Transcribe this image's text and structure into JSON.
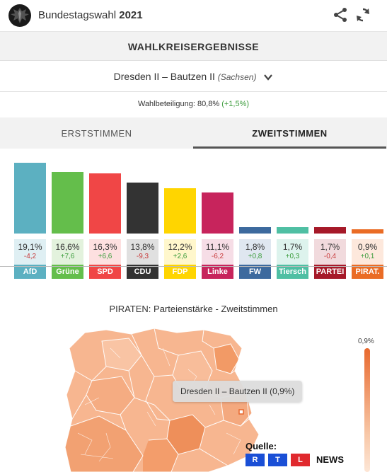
{
  "header": {
    "brand": "Bundestagswahl",
    "year": "2021",
    "icons": [
      "eagle-logo",
      "share-icon",
      "refresh-icon"
    ]
  },
  "section": {
    "title": "WAHLKREISERGEBNISSE"
  },
  "constituency": {
    "name": "Dresden II – Bautzen II",
    "state": "(Sachsen)"
  },
  "turnout": {
    "label": "Wahlbeteiligung: 80,8%",
    "delta": "(+1,5%)"
  },
  "tabs": [
    {
      "label": "ERSTSTIMMEN",
      "active": false
    },
    {
      "label": "ZWEITSTIMMEN",
      "active": true
    }
  ],
  "chart_data": {
    "type": "bar",
    "title": "",
    "categories": [
      "AfD",
      "Grüne",
      "SPD",
      "CDU",
      "FDP",
      "Linke",
      "FW",
      "Tiersch",
      "PARTEI",
      "PIRAT."
    ],
    "values": [
      19.1,
      16.6,
      16.3,
      13.8,
      12.2,
      11.1,
      1.8,
      1.7,
      1.7,
      0.9
    ],
    "value_labels": [
      "19,1%",
      "16,6%",
      "16,3%",
      "13,8%",
      "12,2%",
      "11,1%",
      "1,8%",
      "1,7%",
      "1,7%",
      "0,9%"
    ],
    "changes": [
      "-4,2",
      "+7,6",
      "+6,6",
      "-9,3",
      "+2,6",
      "-6,2",
      "+0,8",
      "+0,3",
      "-0,4",
      "+0,1"
    ],
    "colors": [
      "#5cb0c1",
      "#64be4b",
      "#f04646",
      "#333333",
      "#ffd500",
      "#c7245c",
      "#3d6a9e",
      "#4fbfa3",
      "#a61929",
      "#ea6c25"
    ],
    "cell_backgrounds": [
      "#dfeff3",
      "#e3f2dd",
      "#fde0e0",
      "#e0e0e0",
      "#fff7cc",
      "#f6dde6",
      "#dfe7f0",
      "#ddf3ed",
      "#f1dadd",
      "#fde8dc"
    ],
    "label_colors": [
      "#5cb0c1",
      "#64be4b",
      "#f04646",
      "#333333",
      "#ffd500",
      "#c7245c",
      "#3d6a9e",
      "#4fbfa3",
      "#a61929",
      "#ea6c25"
    ],
    "ylim": [
      0,
      19.1
    ]
  },
  "map": {
    "title": "PIRATEN: Parteienstärke - Zweitstimmen",
    "scale_max": "0,9%",
    "tooltip": "Dresden II – Bautzen II (0,9%)"
  },
  "source": {
    "label": "Quelle:",
    "logo_letters": [
      "R",
      "T",
      "L"
    ],
    "logo_colors": [
      "#1a4fd6",
      "#1a4fd6",
      "#e0292e"
    ],
    "logo_suffix": "NEWS"
  }
}
